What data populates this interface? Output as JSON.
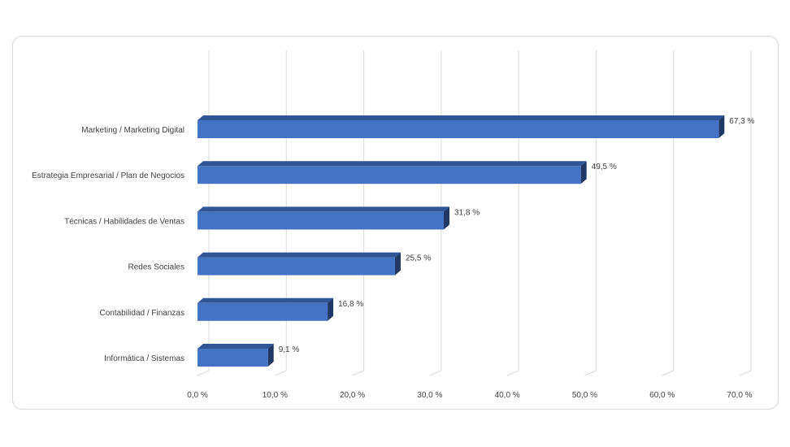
{
  "chart_data": {
    "type": "bar",
    "orientation": "horizontal",
    "three_d": true,
    "categories": [
      "Marketing / Marketing Digital",
      "Estrategia Empresarial / Plan de Negocios",
      "Técnicas / Habilidades de Ventas",
      "Redes Sociales",
      "Contabilidad / Finanzas",
      "Informática / Sistemas"
    ],
    "values": [
      67.3,
      49.5,
      31.8,
      25.5,
      16.8,
      9.1
    ],
    "data_labels": [
      "67,3 %",
      "49,5 %",
      "31,8 %",
      "25,5 %",
      "16,8 %",
      "9,1 %"
    ],
    "x_ticks": [
      0,
      10,
      20,
      30,
      40,
      50,
      60,
      70
    ],
    "x_tick_labels": [
      "0,0 %",
      "10,0 %",
      "20,0 %",
      "30,0 %",
      "40,0 %",
      "50,0 %",
      "60,0 %",
      "70,0 %"
    ],
    "xlim": [
      0,
      70
    ],
    "title": "",
    "xlabel": "",
    "ylabel": "",
    "grid": "vertical",
    "legend": "none",
    "colors": {
      "bar_front": "#4472c4",
      "bar_top": "#2f5597",
      "bar_side": "#203864",
      "grid": "#d9d9d9",
      "text": "#404040"
    }
  }
}
